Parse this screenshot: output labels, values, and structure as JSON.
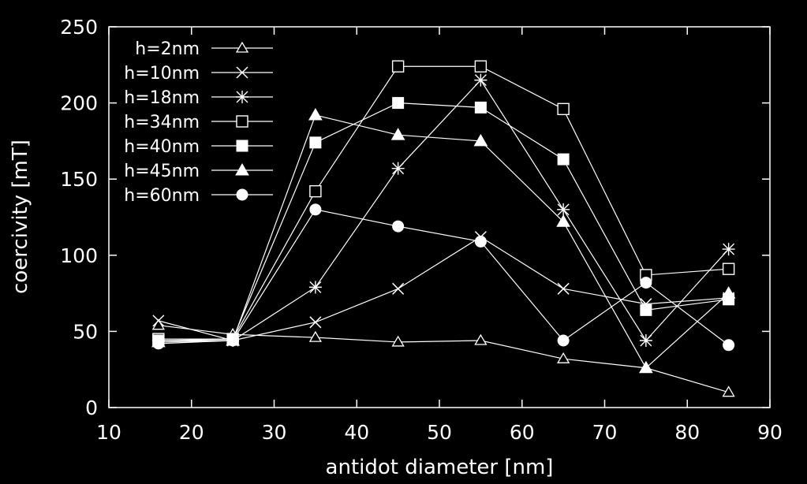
{
  "chart_data": {
    "type": "line",
    "title": "",
    "xlabel": "antidot diameter [nm]",
    "ylabel": "coercivity [mT]",
    "xlim": [
      10,
      90
    ],
    "ylim": [
      0,
      250
    ],
    "xticks": [
      10,
      20,
      30,
      40,
      50,
      60,
      70,
      80,
      90
    ],
    "yticks": [
      0,
      50,
      100,
      150,
      200,
      250
    ],
    "grid": false,
    "legend_position": "top-left",
    "x": [
      16,
      25,
      35,
      45,
      55,
      65,
      75,
      85
    ],
    "series": [
      {
        "name": "h=2nm",
        "marker": "triangle-open",
        "values": [
          54,
          48,
          46,
          43,
          44,
          32,
          26,
          10
        ]
      },
      {
        "name": "h=10nm",
        "marker": "x",
        "values": [
          57,
          44,
          56,
          78,
          112,
          78,
          68,
          72
        ]
      },
      {
        "name": "h=18nm",
        "marker": "star",
        "values": [
          44,
          44,
          79,
          157,
          215,
          130,
          44,
          104
        ]
      },
      {
        "name": "h=34nm",
        "marker": "square-open",
        "values": [
          45,
          45,
          142,
          224,
          224,
          196,
          87,
          91
        ]
      },
      {
        "name": "h=40nm",
        "marker": "square-filled",
        "values": [
          44,
          45,
          174,
          200,
          197,
          163,
          64,
          71
        ]
      },
      {
        "name": "h=45nm",
        "marker": "triangle-filled",
        "values": [
          43,
          44,
          192,
          179,
          175,
          122,
          26,
          75
        ]
      },
      {
        "name": "h=60nm",
        "marker": "circle-filled",
        "values": [
          42,
          44,
          130,
          119,
          109,
          44,
          82,
          41
        ]
      }
    ]
  }
}
